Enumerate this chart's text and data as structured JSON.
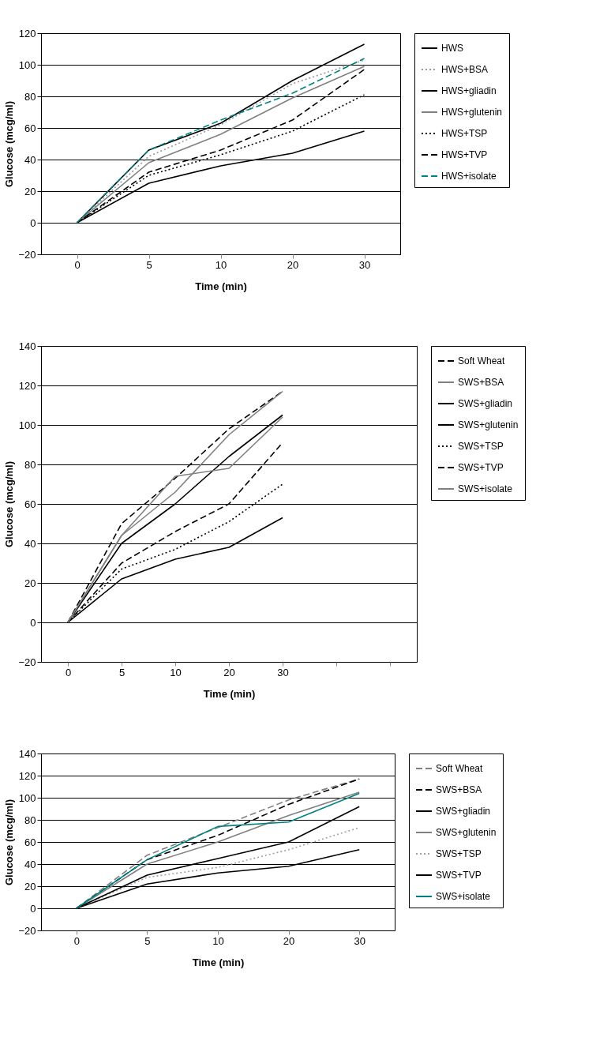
{
  "chart_data": [
    {
      "type": "line",
      "xlabel": "Time (min)",
      "ylabel": "Glucose (mcg/ml)",
      "categories": [
        "0",
        "5",
        "10",
        "20",
        "30"
      ],
      "ylim": [
        -20,
        120
      ],
      "yticks": [
        -20,
        0,
        20,
        40,
        60,
        80,
        100,
        120
      ],
      "grid": "y",
      "legend": "right",
      "marker": "none",
      "series": [
        {
          "name": "HWS",
          "color": "#000000",
          "line_style": "solid",
          "values": [
            0,
            46,
            63,
            90,
            113
          ]
        },
        {
          "name": "HWS+BSA",
          "color": "#999999",
          "line_style": "dotted",
          "values": [
            0,
            42,
            62,
            88,
            103
          ]
        },
        {
          "name": "HWS+gliadin",
          "color": "#000000",
          "line_style": "solid",
          "values": [
            0,
            25,
            36,
            44,
            58
          ]
        },
        {
          "name": "HWS+glutenin",
          "color": "#808080",
          "line_style": "solid",
          "values": [
            0,
            38,
            56,
            79,
            99
          ]
        },
        {
          "name": "HWS+TSP",
          "color": "#000000",
          "line_style": "dotted",
          "values": [
            0,
            30,
            43,
            58,
            81
          ]
        },
        {
          "name": "HWS+TVP",
          "color": "#000000",
          "line_style": "dashed",
          "values": [
            0,
            32,
            46,
            65,
            97
          ]
        },
        {
          "name": "HWS+isolate",
          "color": "#008080",
          "line_style": "dashed",
          "values": [
            0,
            46,
            65,
            82,
            104
          ]
        }
      ]
    },
    {
      "type": "line",
      "xlabel": "Time (min)",
      "ylabel": "Glucose (mcg/ml)",
      "categories": [
        "0",
        "5",
        "10",
        "20",
        "30",
        null,
        null
      ],
      "ylim": [
        -20,
        140
      ],
      "yticks": [
        -20,
        0,
        20,
        40,
        60,
        80,
        100,
        120,
        140
      ],
      "grid": "y",
      "legend": "right",
      "marker": "none",
      "series": [
        {
          "name": "Soft Wheat",
          "color": "#000000",
          "line_style": "dashed",
          "values": [
            0,
            50,
            73,
            98,
            117,
            null,
            null
          ]
        },
        {
          "name": "SWS+BSA",
          "color": "#808080",
          "line_style": "solid",
          "values": [
            0,
            44,
            66,
            95,
            117,
            null,
            null
          ]
        },
        {
          "name": "SWS+gliadin",
          "color": "#000000",
          "line_style": "solid",
          "values": [
            0,
            22,
            32,
            38,
            53,
            null,
            null
          ]
        },
        {
          "name": "SWS+glutenin",
          "color": "#000000",
          "line_style": "solid",
          "values": [
            0,
            40,
            60,
            84,
            105,
            null,
            null
          ]
        },
        {
          "name": "SWS+TSP",
          "color": "#000000",
          "line_style": "dotted",
          "values": [
            0,
            27,
            37,
            51,
            70,
            null,
            null
          ]
        },
        {
          "name": "SWS+TVP",
          "color": "#000000",
          "line_style": "dashed",
          "values": [
            0,
            30,
            46,
            60,
            91,
            null,
            null
          ]
        },
        {
          "name": "SWS+isolate",
          "color": "#808080",
          "line_style": "solid",
          "values": [
            0,
            44,
            74,
            78,
            104,
            null,
            null
          ]
        }
      ]
    },
    {
      "type": "line",
      "xlabel": "Time (min)",
      "ylabel": "Glucose (mcg/ml)",
      "categories": [
        "0",
        "5",
        "10",
        "20",
        "30"
      ],
      "ylim": [
        -20,
        140
      ],
      "yticks": [
        -20,
        0,
        20,
        40,
        60,
        80,
        100,
        120,
        140
      ],
      "grid": "y",
      "legend": "right",
      "marker": "none",
      "series": [
        {
          "name": "Soft Wheat",
          "color": "#808080",
          "line_style": "dashed",
          "values": [
            0,
            48,
            73,
            98,
            117
          ]
        },
        {
          "name": "SWS+BSA",
          "color": "#000000",
          "line_style": "dashed",
          "values": [
            0,
            44,
            66,
            94,
            117
          ]
        },
        {
          "name": "SWS+gliadin",
          "color": "#000000",
          "line_style": "solid",
          "values": [
            0,
            22,
            32,
            38,
            53
          ]
        },
        {
          "name": "SWS+glutenin",
          "color": "#808080",
          "line_style": "solid",
          "values": [
            0,
            40,
            60,
            84,
            105
          ]
        },
        {
          "name": "SWS+TSP",
          "color": "#a0a0a0",
          "line_style": "dotted",
          "values": [
            0,
            28,
            37,
            53,
            73
          ]
        },
        {
          "name": "SWS+TVP",
          "color": "#000000",
          "line_style": "solid",
          "values": [
            0,
            30,
            45,
            60,
            92
          ]
        },
        {
          "name": "SWS+isolate",
          "color": "#008080",
          "line_style": "solid",
          "values": [
            0,
            44,
            74,
            78,
            104
          ]
        }
      ]
    }
  ]
}
